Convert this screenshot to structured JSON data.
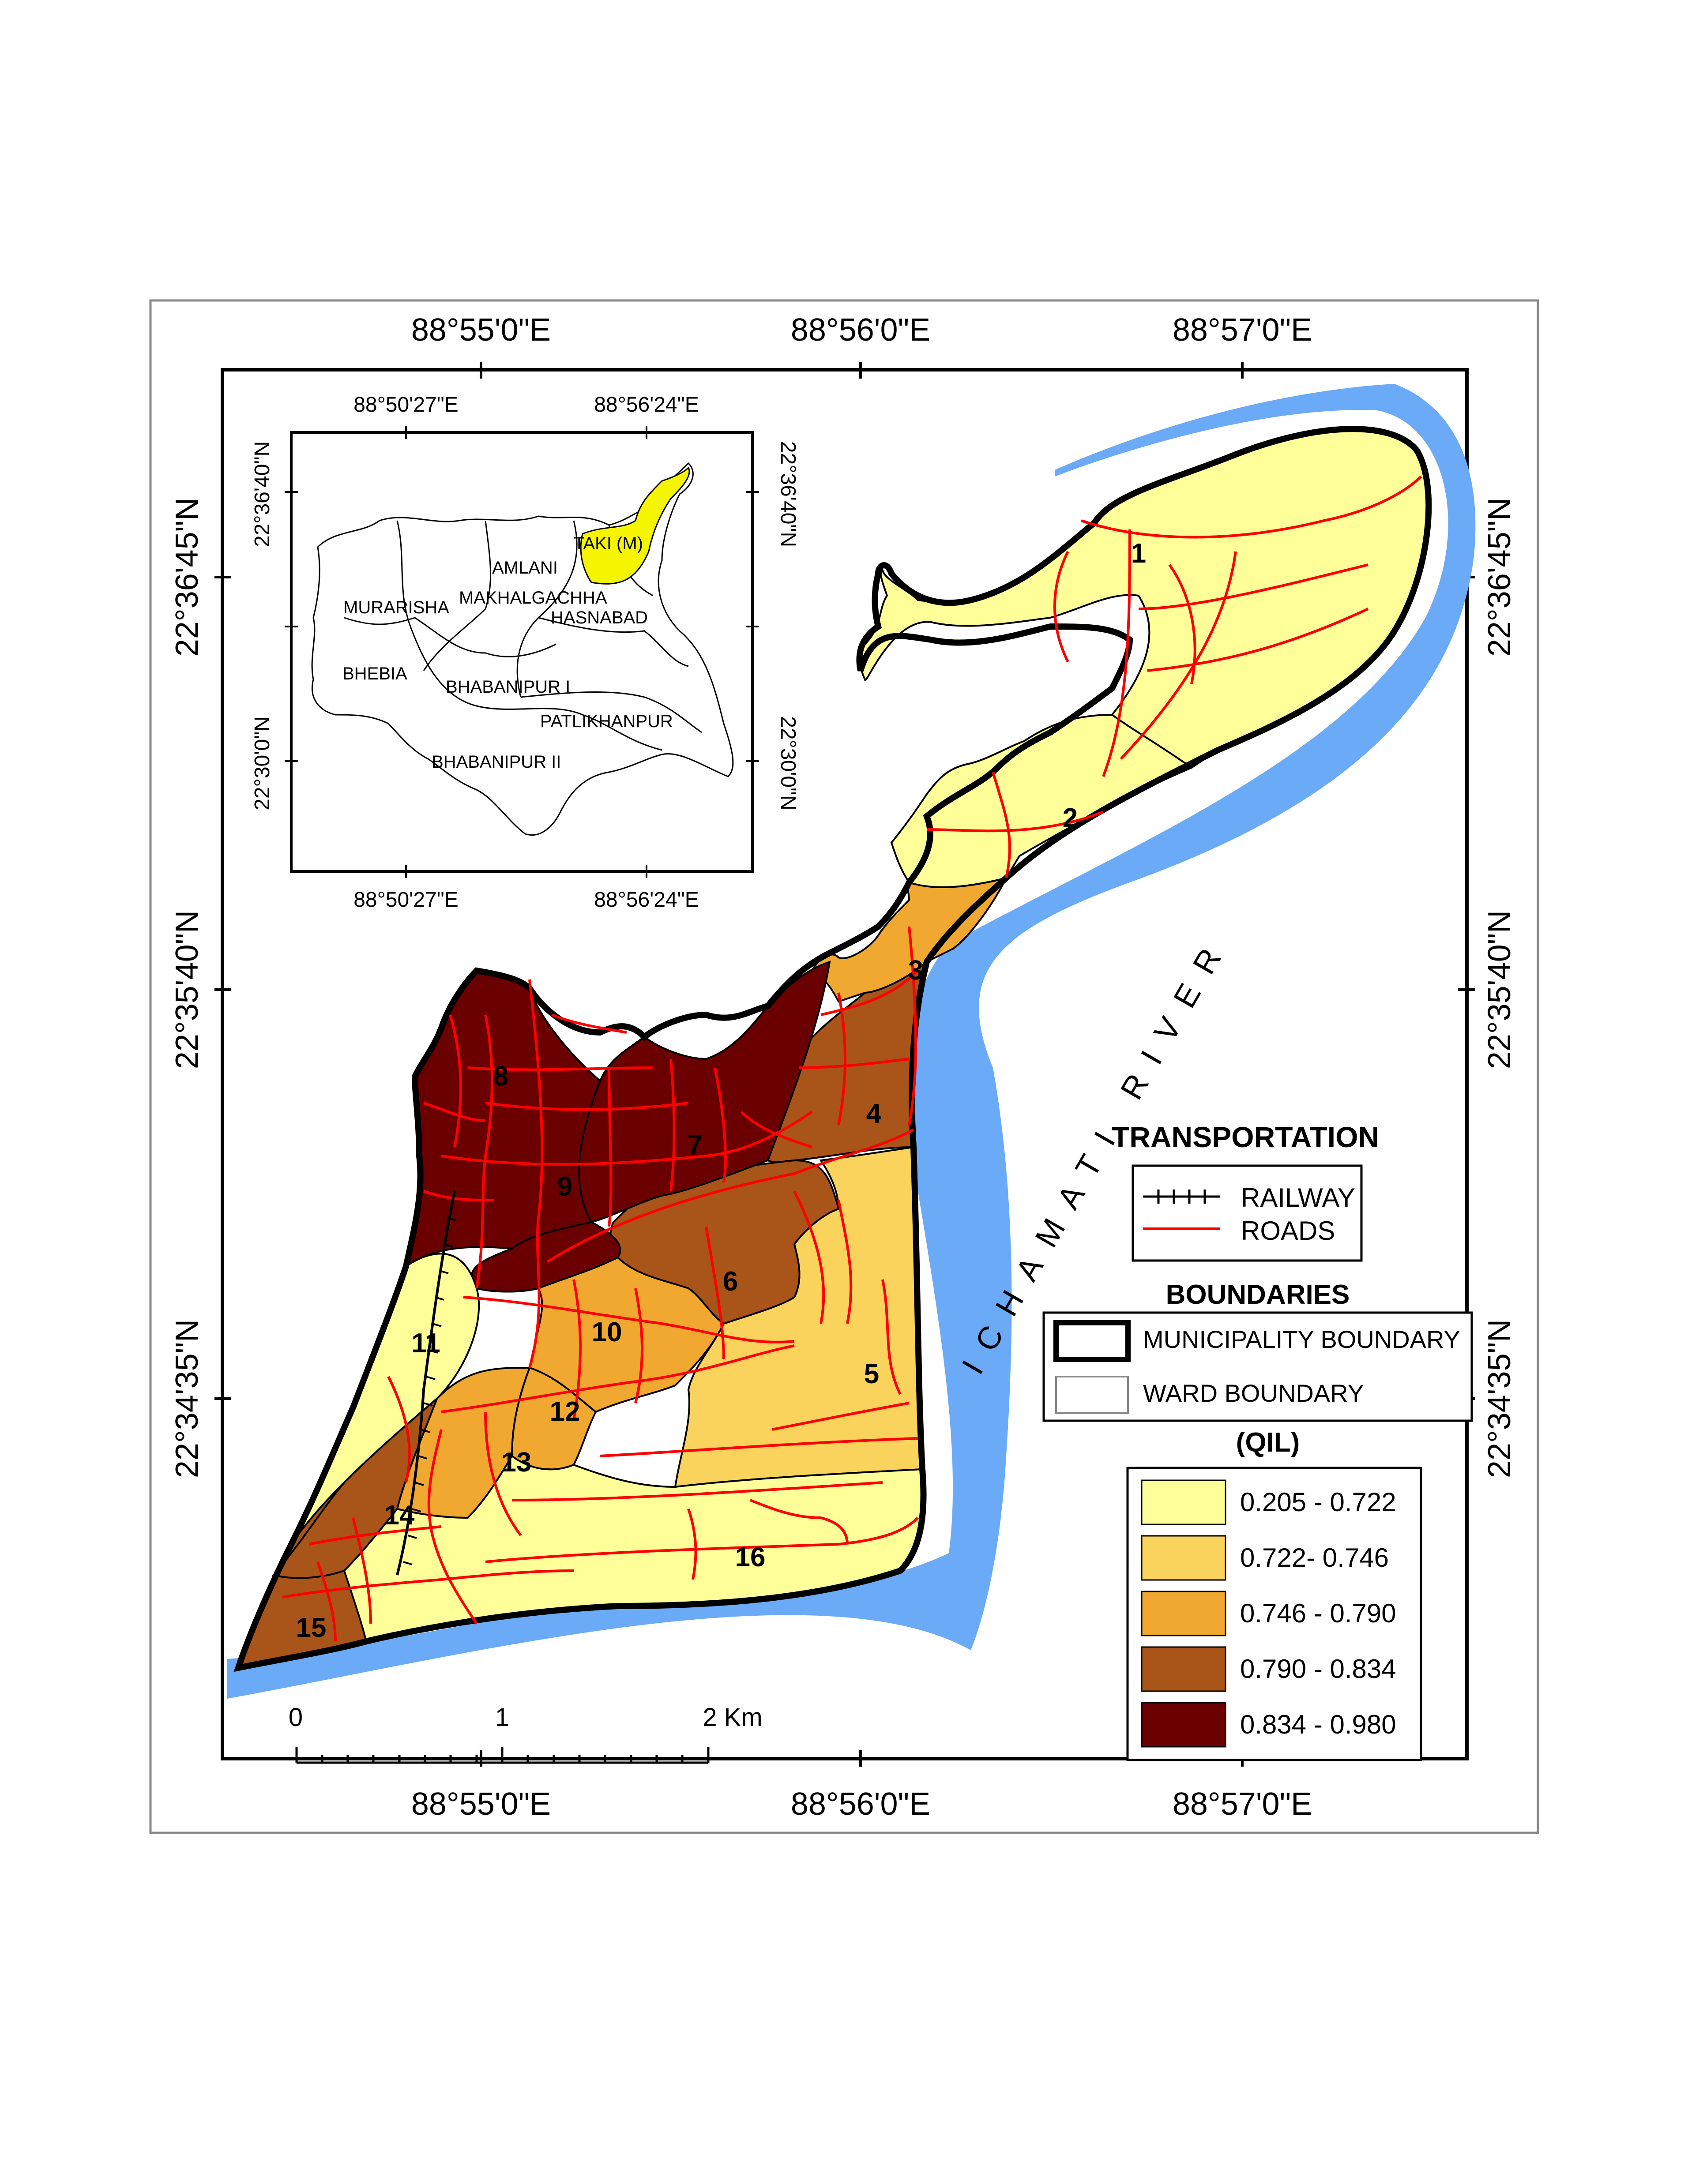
{
  "coords": {
    "lon_top": [
      "88°55'0\"E",
      "88°56'0\"E",
      "88°57'0\"E"
    ],
    "lon_bottom": [
      "88°55'0\"E",
      "88°56'0\"E",
      "88°57'0\"E"
    ],
    "lat_left": [
      "22°36'45\"N",
      "22°35'40\"N",
      "22°34'35\"N"
    ],
    "lat_right": [
      "22°36'45\"N",
      "22°35'40\"N",
      "22°34'35\"N"
    ]
  },
  "inset": {
    "lon_top": [
      "88°50'27\"E",
      "88°56'24\"E"
    ],
    "lon_bottom": [
      "88°50'27\"E",
      "88°56'24\"E"
    ],
    "lat_left": [
      "22°36'40\"N",
      "22°30'0\"N"
    ],
    "lat_right": [
      "22°36'40\"N",
      "22°30'0\"N"
    ],
    "places": [
      "AMLANI",
      "TAKI (M)",
      "MURARISHA",
      "MAKHALGACHHA",
      "HASNABAD",
      "BHEBIA",
      "BHABANIPUR I",
      "PATLIKHANPUR",
      "BHABANIPUR II"
    ],
    "highlight_color": "#f5f500"
  },
  "river_label": "ICHAMATI RIVER",
  "wards": [
    "1",
    "2",
    "3",
    "4",
    "5",
    "6",
    "7",
    "8",
    "9",
    "10",
    "11",
    "12",
    "13",
    "14",
    "15",
    "16"
  ],
  "scale_bar": {
    "labels": [
      "0",
      "1",
      "2 Km"
    ]
  },
  "legend": {
    "transport_title": "TRANSPORTATION",
    "railway": "RAILWAY",
    "roads": "ROADS",
    "boundaries_title": "BOUNDARIES",
    "municipality": "MUNICIPALITY BOUNDARY",
    "ward": "WARD BOUNDARY",
    "qil_title": "(QIL)",
    "classes": [
      {
        "label": "0.205 - 0.722",
        "color": "#ffff99"
      },
      {
        "label": "0.722- 0.746",
        "color": "#f9d35b"
      },
      {
        "label": "0.746 - 0.790",
        "color": "#f0a830"
      },
      {
        "label": "0.790 - 0.834",
        "color": "#a95418"
      },
      {
        "label": "0.834 - 0.980",
        "color": "#6b0000"
      }
    ]
  },
  "colors": {
    "river": "#6aaaf6",
    "road": "#ff0000",
    "railway": "#000000"
  }
}
